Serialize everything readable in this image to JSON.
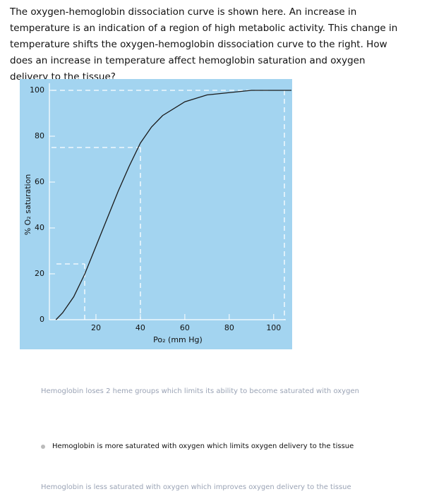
{
  "question": "The oxygen-hemoglobin dissociation curve is shown here. An increase in temperature is an indication of a region of high metabolic activity. This change in temperature shifts the oxygen-hemoglobin dissociation curve to the right. How does an increase in temperature affect hemoglobin saturation and oxygen delivery to the tissue?",
  "chart_data": {
    "type": "line",
    "x_label": "Po₂ (mm Hg)",
    "y_label": "% O₂ saturation",
    "x": [
      2,
      5,
      10,
      15,
      20,
      25,
      30,
      35,
      40,
      45,
      50,
      60,
      70,
      80,
      90,
      100,
      108
    ],
    "series": [
      {
        "color": "#1a1a1a",
        "values": [
          0,
          3,
          10,
          20,
          32,
          44,
          56,
          67,
          77,
          84,
          89,
          95,
          98,
          99,
          100,
          100,
          100
        ]
      }
    ],
    "xlim": [
      0,
      108
    ],
    "ylim": [
      0,
      100
    ],
    "xticks": [
      20,
      40,
      60,
      80,
      100
    ],
    "yticks": [
      0,
      20,
      40,
      60,
      80,
      100
    ]
  },
  "options": [
    "Hemoglobin loses 2 heme groups which limits its ability to become saturated with oxygen",
    "Hemoglobin is more saturated with oxygen which limits oxygen delivery to the tissue",
    "Hemoglobin is less saturated with oxygen which improves oxygen delivery to the tissue"
  ]
}
